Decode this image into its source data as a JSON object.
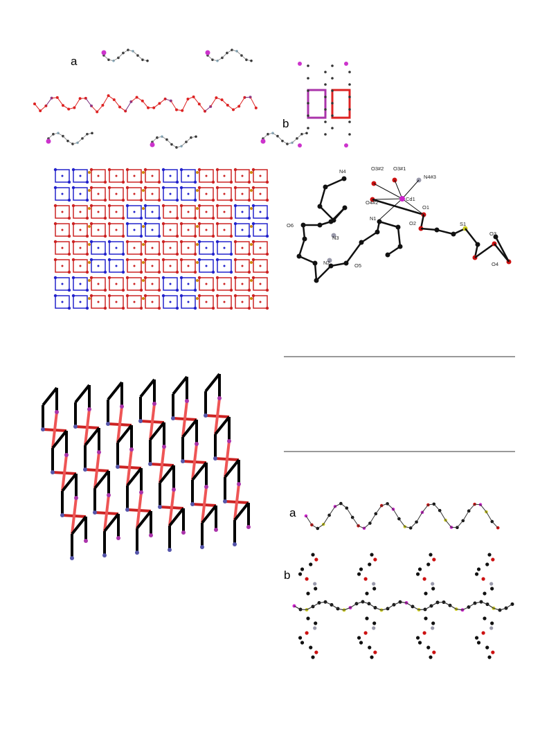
{
  "figure_1": {
    "panel_labels": [
      "a",
      "b"
    ]
  },
  "figure_3": {
    "atom_labels": [
      "N4",
      "O3#2",
      "O3#1",
      "N4#3",
      "Cd1",
      "O4#2",
      "O1",
      "O2",
      "S1",
      "O3",
      "O4",
      "N1",
      "O6",
      "N3",
      "N2",
      "O5"
    ]
  },
  "figure_6": {
    "panel_labels": [
      "a",
      "b"
    ]
  }
}
